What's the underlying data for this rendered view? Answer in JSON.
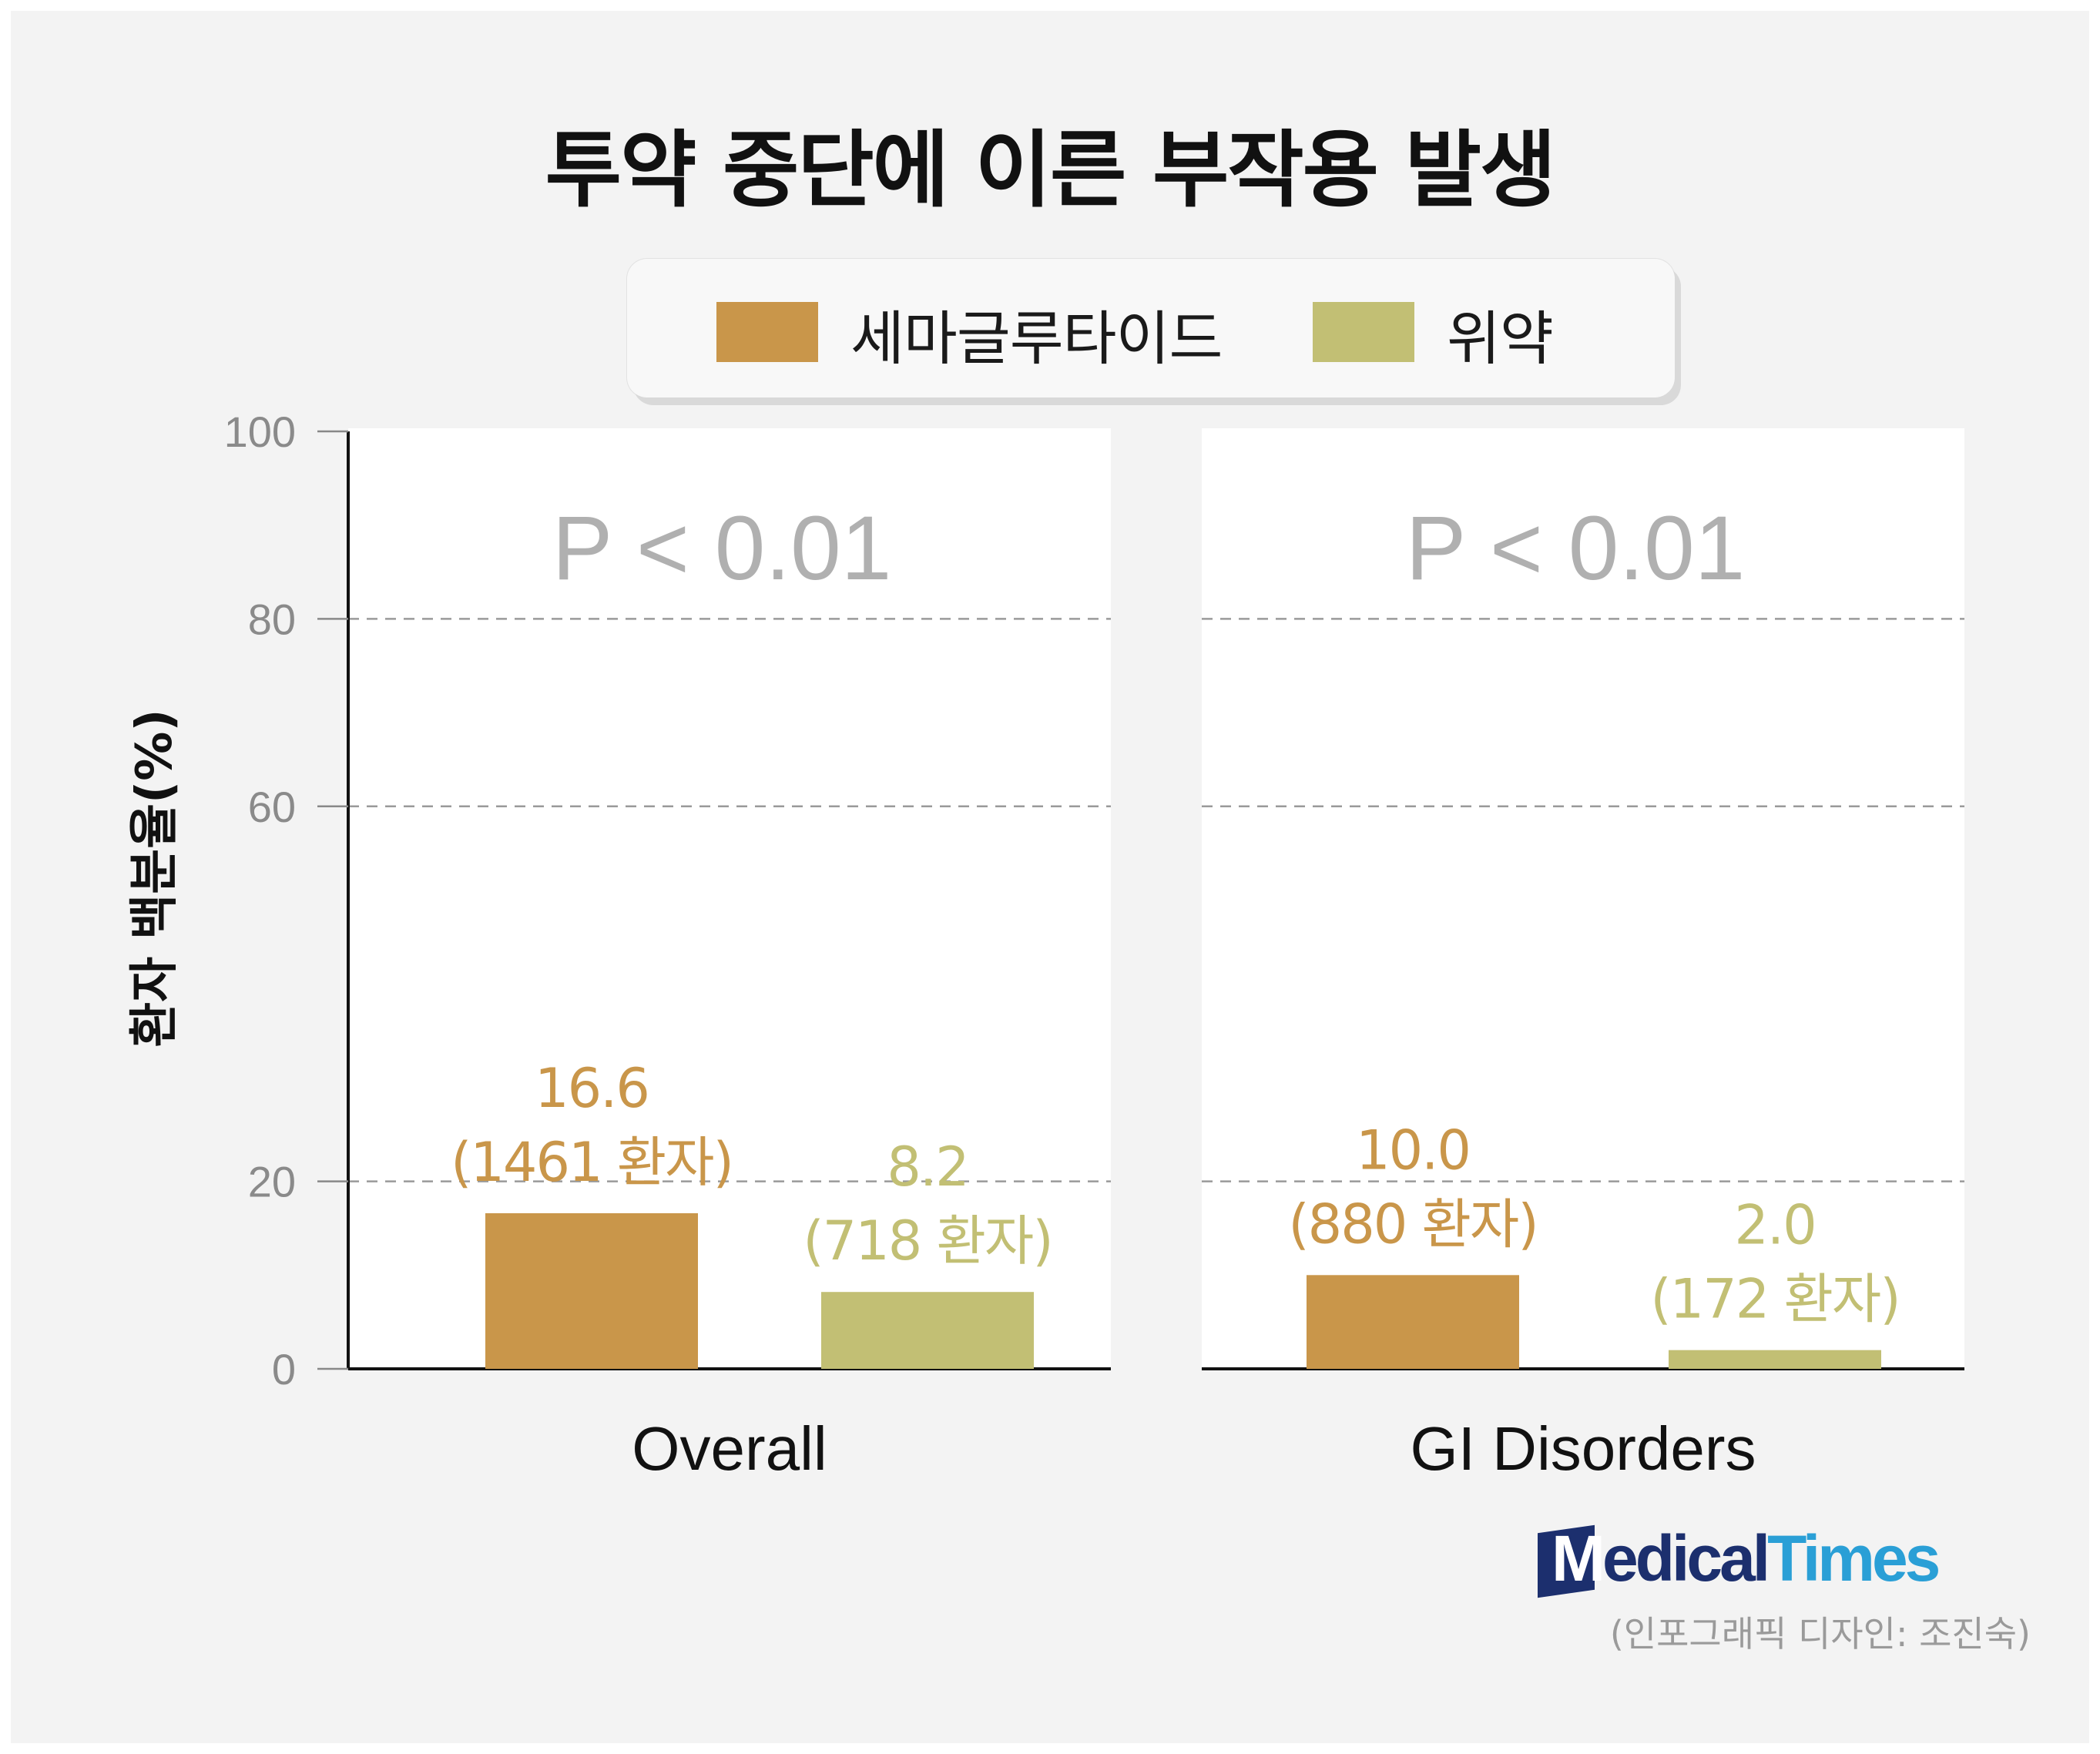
{
  "title": "투약 중단에 이른 부작용 발생",
  "legend": [
    {
      "label": "세마글루타이드",
      "color": "#c9964a"
    },
    {
      "label": "위약",
      "color": "#c2bf74"
    }
  ],
  "brand": {
    "part1": "M",
    "part2": "edical",
    "part3": "Times"
  },
  "credit": "(인포그래픽 디자인: 조진숙)",
  "colors": {
    "semaglutide": "#c9964a",
    "placebo": "#c2bf74",
    "p_text": "#b0b0b0",
    "grid": "#9a9a9a"
  },
  "chart_data": {
    "type": "bar",
    "ylabel": "환자 백분율(%)",
    "ylim": [
      0,
      100
    ],
    "yticks": [
      "0",
      "20",
      "60",
      "80",
      "100"
    ],
    "grid": "dashed at 20, 60, 80",
    "legend_position": "top-center",
    "panels": [
      {
        "category": "Overall",
        "p_value": "P < 0.01",
        "series": [
          {
            "name": "세마글루타이드",
            "value": 16.6,
            "label": "16.6",
            "count_label": "(1461 환자)"
          },
          {
            "name": "위약",
            "value": 8.2,
            "label": "8.2",
            "count_label": "(718 환자)"
          }
        ]
      },
      {
        "category": "GI Disorders",
        "p_value": "P < 0.01",
        "series": [
          {
            "name": "세마글루타이드",
            "value": 10.0,
            "label": "10.0",
            "count_label": "(880 환자)"
          },
          {
            "name": "위약",
            "value": 2.0,
            "label": "2.0",
            "count_label": "(172 환자)"
          }
        ]
      }
    ]
  }
}
